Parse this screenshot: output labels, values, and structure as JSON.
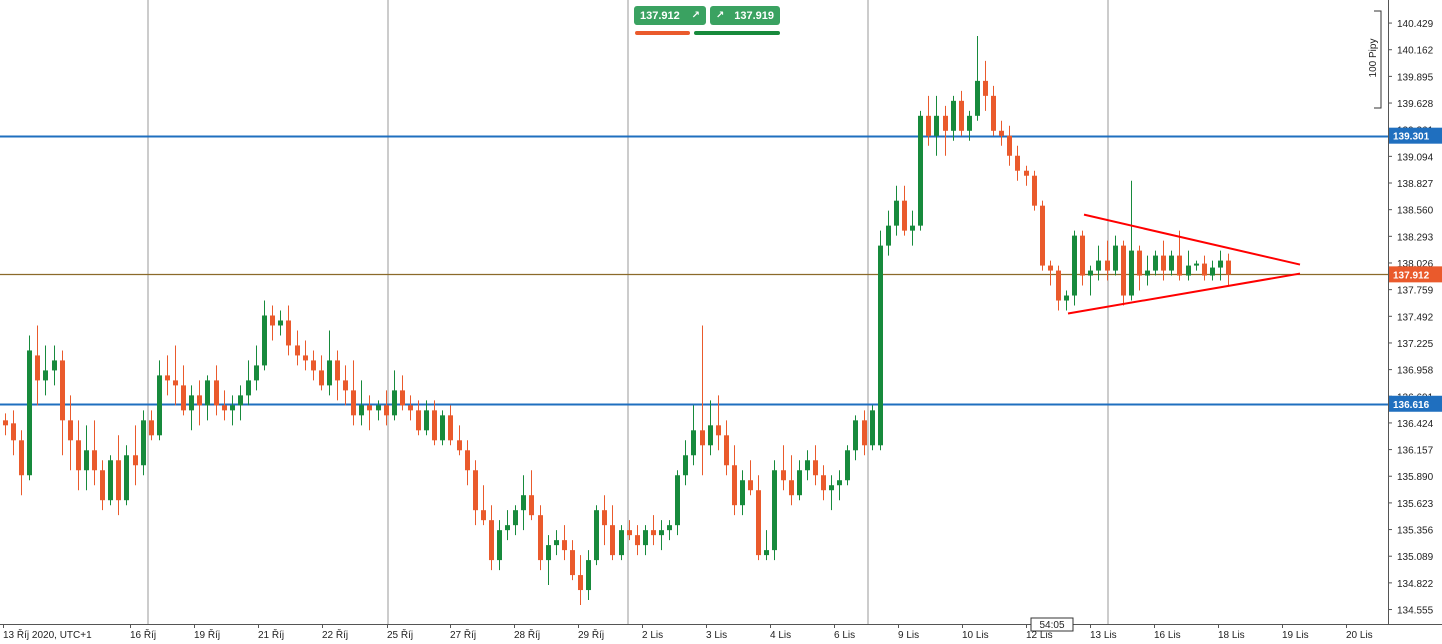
{
  "quotes": {
    "sell_price": "137.912",
    "buy_price": "137.919",
    "sell_icon": "arrow-up-right-icon",
    "buy_icon": "arrow-up-right-icon"
  },
  "countdown": "54:05",
  "scale_label": "100 Pipy",
  "colors": {
    "bull": "#178a3c",
    "bear": "#ea5a2c",
    "hline": "#1f6fbf",
    "price_line": "#8b6a2a",
    "triangle": "#ff0000",
    "grid": "#9a9a9a"
  },
  "chart_data": {
    "type": "candlestick",
    "instrument_price_axis": [
      "140.429",
      "140.162",
      "139.895",
      "139.628",
      "139.361",
      "139.094",
      "138.827",
      "138.560",
      "138.293",
      "138.026",
      "137.759",
      "137.492",
      "137.225",
      "136.958",
      "136.691",
      "136.424",
      "136.157",
      "135.890",
      "135.623",
      "135.356",
      "135.089",
      "134.822",
      "134.555"
    ],
    "ylim": [
      134.41,
      140.66
    ],
    "x_tick_labels": [
      "13 Říj 2020, UTC+1",
      "16 Říj",
      "19 Říj",
      "21 Říj",
      "22 Říj",
      "25 Říj",
      "27 Říj",
      "28 Říj",
      "29 Říj",
      "2 Lis",
      "3 Lis",
      "4 Lis",
      "6 Lis",
      "9 Lis",
      "10 Lis",
      "12 Lis",
      "13 Lis",
      "16 Lis",
      "18 Lis",
      "19 Lis",
      "20 Lis"
    ],
    "horizontal_levels": [
      {
        "label": "139.301",
        "value": 139.301,
        "kind": "resistance"
      },
      {
        "label": "136.616",
        "value": 136.616,
        "kind": "support"
      },
      {
        "label": "137.912",
        "value": 137.912,
        "kind": "current-price"
      }
    ],
    "triangle": {
      "upper": [
        [
          138.51,
          1084
        ],
        [
          138.01,
          1300
        ]
      ],
      "lower": [
        [
          137.52,
          1068
        ],
        [
          137.92,
          1300
        ]
      ]
    },
    "candles": [
      {
        "o": 136.45,
        "h": 136.52,
        "l": 136.3,
        "c": 136.4
      },
      {
        "o": 136.42,
        "h": 136.55,
        "l": 136.1,
        "c": 136.25
      },
      {
        "o": 136.25,
        "h": 136.35,
        "l": 135.7,
        "c": 135.9
      },
      {
        "o": 135.9,
        "h": 137.3,
        "l": 135.85,
        "c": 137.15
      },
      {
        "o": 137.1,
        "h": 137.4,
        "l": 136.6,
        "c": 136.85
      },
      {
        "o": 136.85,
        "h": 137.2,
        "l": 136.7,
        "c": 136.95
      },
      {
        "o": 136.95,
        "h": 137.2,
        "l": 136.8,
        "c": 137.05
      },
      {
        "o": 137.05,
        "h": 137.15,
        "l": 136.1,
        "c": 136.45
      },
      {
        "o": 136.45,
        "h": 136.7,
        "l": 135.95,
        "c": 136.25
      },
      {
        "o": 136.25,
        "h": 136.45,
        "l": 135.75,
        "c": 135.95
      },
      {
        "o": 135.95,
        "h": 136.4,
        "l": 135.75,
        "c": 136.15
      },
      {
        "o": 136.15,
        "h": 136.45,
        "l": 135.8,
        "c": 135.95
      },
      {
        "o": 135.95,
        "h": 136.05,
        "l": 135.55,
        "c": 135.65
      },
      {
        "o": 135.65,
        "h": 136.1,
        "l": 135.6,
        "c": 136.05
      },
      {
        "o": 136.05,
        "h": 136.3,
        "l": 135.5,
        "c": 135.65
      },
      {
        "o": 135.65,
        "h": 136.2,
        "l": 135.6,
        "c": 136.1
      },
      {
        "o": 136.1,
        "h": 136.4,
        "l": 135.8,
        "c": 136.0
      },
      {
        "o": 136.0,
        "h": 136.55,
        "l": 135.9,
        "c": 136.45
      },
      {
        "o": 136.45,
        "h": 136.55,
        "l": 136.25,
        "c": 136.3
      },
      {
        "o": 136.3,
        "h": 137.05,
        "l": 136.25,
        "c": 136.9
      },
      {
        "o": 136.9,
        "h": 137.1,
        "l": 136.7,
        "c": 136.85
      },
      {
        "o": 136.85,
        "h": 137.2,
        "l": 136.6,
        "c": 136.8
      },
      {
        "o": 136.8,
        "h": 137.0,
        "l": 136.5,
        "c": 136.55
      },
      {
        "o": 136.55,
        "h": 136.8,
        "l": 136.35,
        "c": 136.7
      },
      {
        "o": 136.7,
        "h": 136.85,
        "l": 136.4,
        "c": 136.6
      },
      {
        "o": 136.6,
        "h": 136.9,
        "l": 136.45,
        "c": 136.85
      },
      {
        "o": 136.85,
        "h": 137.0,
        "l": 136.5,
        "c": 136.6
      },
      {
        "o": 136.6,
        "h": 136.75,
        "l": 136.45,
        "c": 136.55
      },
      {
        "o": 136.55,
        "h": 136.7,
        "l": 136.4,
        "c": 136.6
      },
      {
        "o": 136.6,
        "h": 136.8,
        "l": 136.45,
        "c": 136.7
      },
      {
        "o": 136.7,
        "h": 137.05,
        "l": 136.6,
        "c": 136.85
      },
      {
        "o": 136.85,
        "h": 137.2,
        "l": 136.75,
        "c": 137.0
      },
      {
        "o": 137.0,
        "h": 137.65,
        "l": 136.95,
        "c": 137.5
      },
      {
        "o": 137.5,
        "h": 137.6,
        "l": 137.25,
        "c": 137.4
      },
      {
        "o": 137.4,
        "h": 137.55,
        "l": 137.3,
        "c": 137.45
      },
      {
        "o": 137.45,
        "h": 137.6,
        "l": 137.1,
        "c": 137.2
      },
      {
        "o": 137.2,
        "h": 137.35,
        "l": 137.0,
        "c": 137.1
      },
      {
        "o": 137.1,
        "h": 137.25,
        "l": 136.95,
        "c": 137.05
      },
      {
        "o": 137.05,
        "h": 137.15,
        "l": 136.85,
        "c": 136.95
      },
      {
        "o": 136.95,
        "h": 137.1,
        "l": 136.75,
        "c": 136.8
      },
      {
        "o": 136.8,
        "h": 137.35,
        "l": 136.7,
        "c": 137.05
      },
      {
        "o": 137.05,
        "h": 137.15,
        "l": 136.65,
        "c": 136.85
      },
      {
        "o": 136.85,
        "h": 137.0,
        "l": 136.6,
        "c": 136.75
      },
      {
        "o": 136.75,
        "h": 137.05,
        "l": 136.4,
        "c": 136.5
      },
      {
        "o": 136.5,
        "h": 136.85,
        "l": 136.4,
        "c": 136.6
      },
      {
        "o": 136.6,
        "h": 136.7,
        "l": 136.35,
        "c": 136.55
      },
      {
        "o": 136.55,
        "h": 136.65,
        "l": 136.45,
        "c": 136.6
      },
      {
        "o": 136.6,
        "h": 136.75,
        "l": 136.4,
        "c": 136.5
      },
      {
        "o": 136.5,
        "h": 136.95,
        "l": 136.45,
        "c": 136.75
      },
      {
        "o": 136.75,
        "h": 136.9,
        "l": 136.55,
        "c": 136.6
      },
      {
        "o": 136.6,
        "h": 136.7,
        "l": 136.45,
        "c": 136.55
      },
      {
        "o": 136.55,
        "h": 136.65,
        "l": 136.3,
        "c": 136.35
      },
      {
        "o": 136.35,
        "h": 136.65,
        "l": 136.3,
        "c": 136.55
      },
      {
        "o": 136.55,
        "h": 136.65,
        "l": 136.2,
        "c": 136.25
      },
      {
        "o": 136.25,
        "h": 136.55,
        "l": 136.2,
        "c": 136.5
      },
      {
        "o": 136.5,
        "h": 136.6,
        "l": 136.2,
        "c": 136.25
      },
      {
        "o": 136.25,
        "h": 136.4,
        "l": 136.1,
        "c": 136.15
      },
      {
        "o": 136.15,
        "h": 136.25,
        "l": 135.8,
        "c": 135.95
      },
      {
        "o": 135.95,
        "h": 136.05,
        "l": 135.4,
        "c": 135.55
      },
      {
        "o": 135.55,
        "h": 135.8,
        "l": 135.4,
        "c": 135.45
      },
      {
        "o": 135.45,
        "h": 135.6,
        "l": 134.95,
        "c": 135.05
      },
      {
        "o": 135.05,
        "h": 135.45,
        "l": 134.95,
        "c": 135.35
      },
      {
        "o": 135.35,
        "h": 135.55,
        "l": 135.25,
        "c": 135.4
      },
      {
        "o": 135.4,
        "h": 135.6,
        "l": 135.3,
        "c": 135.55
      },
      {
        "o": 135.55,
        "h": 135.9,
        "l": 135.35,
        "c": 135.7
      },
      {
        "o": 135.7,
        "h": 135.95,
        "l": 135.45,
        "c": 135.5
      },
      {
        "o": 135.5,
        "h": 135.6,
        "l": 134.95,
        "c": 135.05
      },
      {
        "o": 135.05,
        "h": 135.3,
        "l": 134.8,
        "c": 135.2
      },
      {
        "o": 135.2,
        "h": 135.35,
        "l": 135.1,
        "c": 135.25
      },
      {
        "o": 135.25,
        "h": 135.4,
        "l": 135.05,
        "c": 135.15
      },
      {
        "o": 135.15,
        "h": 135.25,
        "l": 134.85,
        "c": 134.9
      },
      {
        "o": 134.9,
        "h": 135.1,
        "l": 134.6,
        "c": 134.75
      },
      {
        "o": 134.75,
        "h": 135.15,
        "l": 134.65,
        "c": 135.05
      },
      {
        "o": 135.05,
        "h": 135.6,
        "l": 135.0,
        "c": 135.55
      },
      {
        "o": 135.55,
        "h": 135.7,
        "l": 135.2,
        "c": 135.4
      },
      {
        "o": 135.4,
        "h": 135.6,
        "l": 135.05,
        "c": 135.1
      },
      {
        "o": 135.1,
        "h": 135.4,
        "l": 135.05,
        "c": 135.35
      },
      {
        "o": 135.35,
        "h": 135.45,
        "l": 135.25,
        "c": 135.3
      },
      {
        "o": 135.3,
        "h": 135.4,
        "l": 135.1,
        "c": 135.2
      },
      {
        "o": 135.2,
        "h": 135.4,
        "l": 135.1,
        "c": 135.35
      },
      {
        "o": 135.35,
        "h": 135.5,
        "l": 135.2,
        "c": 135.3
      },
      {
        "o": 135.3,
        "h": 135.45,
        "l": 135.15,
        "c": 135.35
      },
      {
        "o": 135.35,
        "h": 135.45,
        "l": 135.25,
        "c": 135.4
      },
      {
        "o": 135.4,
        "h": 135.95,
        "l": 135.3,
        "c": 135.9
      },
      {
        "o": 135.9,
        "h": 136.25,
        "l": 135.8,
        "c": 136.1
      },
      {
        "o": 136.1,
        "h": 136.6,
        "l": 136.0,
        "c": 136.35
      },
      {
        "o": 136.35,
        "h": 137.4,
        "l": 135.9,
        "c": 136.2
      },
      {
        "o": 136.2,
        "h": 136.65,
        "l": 136.1,
        "c": 136.4
      },
      {
        "o": 136.4,
        "h": 136.7,
        "l": 136.15,
        "c": 136.3
      },
      {
        "o": 136.3,
        "h": 136.45,
        "l": 135.9,
        "c": 136.0
      },
      {
        "o": 136.0,
        "h": 136.2,
        "l": 135.5,
        "c": 135.6
      },
      {
        "o": 135.6,
        "h": 135.95,
        "l": 135.5,
        "c": 135.85
      },
      {
        "o": 135.85,
        "h": 136.05,
        "l": 135.7,
        "c": 135.75
      },
      {
        "o": 135.75,
        "h": 135.9,
        "l": 135.05,
        "c": 135.1
      },
      {
        "o": 135.1,
        "h": 135.35,
        "l": 135.05,
        "c": 135.15
      },
      {
        "o": 135.15,
        "h": 136.05,
        "l": 135.05,
        "c": 135.95
      },
      {
        "o": 135.95,
        "h": 136.2,
        "l": 135.75,
        "c": 135.85
      },
      {
        "o": 135.85,
        "h": 136.1,
        "l": 135.6,
        "c": 135.7
      },
      {
        "o": 135.7,
        "h": 136.05,
        "l": 135.65,
        "c": 135.95
      },
      {
        "o": 135.95,
        "h": 136.15,
        "l": 135.85,
        "c": 136.05
      },
      {
        "o": 136.05,
        "h": 136.2,
        "l": 135.8,
        "c": 135.9
      },
      {
        "o": 135.9,
        "h": 136.0,
        "l": 135.65,
        "c": 135.75
      },
      {
        "o": 135.75,
        "h": 135.9,
        "l": 135.55,
        "c": 135.8
      },
      {
        "o": 135.8,
        "h": 135.95,
        "l": 135.65,
        "c": 135.85
      },
      {
        "o": 135.85,
        "h": 136.2,
        "l": 135.8,
        "c": 136.15
      },
      {
        "o": 136.15,
        "h": 136.5,
        "l": 136.05,
        "c": 136.45
      },
      {
        "o": 136.45,
        "h": 136.55,
        "l": 136.1,
        "c": 136.2
      },
      {
        "o": 136.2,
        "h": 136.6,
        "l": 136.15,
        "c": 136.55
      },
      {
        "o": 136.2,
        "h": 138.35,
        "l": 136.15,
        "c": 138.2
      },
      {
        "o": 138.2,
        "h": 138.55,
        "l": 138.1,
        "c": 138.4
      },
      {
        "o": 138.4,
        "h": 138.8,
        "l": 138.3,
        "c": 138.65
      },
      {
        "o": 138.65,
        "h": 138.8,
        "l": 138.3,
        "c": 138.35
      },
      {
        "o": 138.35,
        "h": 138.55,
        "l": 138.2,
        "c": 138.4
      },
      {
        "o": 138.4,
        "h": 139.55,
        "l": 138.35,
        "c": 139.5
      },
      {
        "o": 139.5,
        "h": 139.7,
        "l": 139.2,
        "c": 139.3
      },
      {
        "o": 139.3,
        "h": 139.7,
        "l": 139.1,
        "c": 139.5
      },
      {
        "o": 139.5,
        "h": 139.6,
        "l": 139.1,
        "c": 139.35
      },
      {
        "o": 139.35,
        "h": 139.7,
        "l": 139.25,
        "c": 139.65
      },
      {
        "o": 139.65,
        "h": 139.75,
        "l": 139.3,
        "c": 139.35
      },
      {
        "o": 139.35,
        "h": 139.55,
        "l": 139.25,
        "c": 139.5
      },
      {
        "o": 139.5,
        "h": 140.3,
        "l": 139.45,
        "c": 139.85
      },
      {
        "o": 139.85,
        "h": 140.05,
        "l": 139.55,
        "c": 139.7
      },
      {
        "o": 139.7,
        "h": 139.8,
        "l": 139.3,
        "c": 139.35
      },
      {
        "o": 139.35,
        "h": 139.45,
        "l": 139.2,
        "c": 139.3
      },
      {
        "o": 139.3,
        "h": 139.4,
        "l": 139.0,
        "c": 139.1
      },
      {
        "o": 139.1,
        "h": 139.2,
        "l": 138.85,
        "c": 138.95
      },
      {
        "o": 138.95,
        "h": 139.0,
        "l": 138.8,
        "c": 138.9
      },
      {
        "o": 138.9,
        "h": 138.95,
        "l": 138.55,
        "c": 138.6
      },
      {
        "o": 138.6,
        "h": 138.65,
        "l": 137.95,
        "c": 138.0
      },
      {
        "o": 138.0,
        "h": 138.05,
        "l": 137.8,
        "c": 137.95
      },
      {
        "o": 137.95,
        "h": 138.0,
        "l": 137.55,
        "c": 137.65
      },
      {
        "o": 137.65,
        "h": 137.75,
        "l": 137.55,
        "c": 137.7
      },
      {
        "o": 137.7,
        "h": 138.35,
        "l": 137.6,
        "c": 138.3
      },
      {
        "o": 138.3,
        "h": 138.35,
        "l": 137.8,
        "c": 137.9
      },
      {
        "o": 137.9,
        "h": 138.0,
        "l": 137.7,
        "c": 137.95
      },
      {
        "o": 137.95,
        "h": 138.2,
        "l": 137.85,
        "c": 138.05
      },
      {
        "o": 138.05,
        "h": 138.25,
        "l": 137.85,
        "c": 137.95
      },
      {
        "o": 137.95,
        "h": 138.3,
        "l": 137.9,
        "c": 138.2
      },
      {
        "o": 138.2,
        "h": 138.25,
        "l": 137.6,
        "c": 137.7
      },
      {
        "o": 137.7,
        "h": 138.85,
        "l": 137.65,
        "c": 138.15
      },
      {
        "o": 138.15,
        "h": 138.2,
        "l": 137.75,
        "c": 137.9
      },
      {
        "o": 137.9,
        "h": 138.1,
        "l": 137.8,
        "c": 137.95
      },
      {
        "o": 137.95,
        "h": 138.15,
        "l": 137.9,
        "c": 138.1
      },
      {
        "o": 138.1,
        "h": 138.25,
        "l": 137.85,
        "c": 137.95
      },
      {
        "o": 137.95,
        "h": 138.15,
        "l": 137.9,
        "c": 138.1
      },
      {
        "o": 138.1,
        "h": 138.35,
        "l": 137.85,
        "c": 137.9
      },
      {
        "o": 137.9,
        "h": 138.15,
        "l": 137.85,
        "c": 138.0
      },
      {
        "o": 138.0,
        "h": 138.05,
        "l": 137.95,
        "c": 138.02
      },
      {
        "o": 138.02,
        "h": 138.1,
        "l": 137.85,
        "c": 137.9
      },
      {
        "o": 137.9,
        "h": 138.05,
        "l": 137.85,
        "c": 137.98
      },
      {
        "o": 137.98,
        "h": 138.15,
        "l": 137.85,
        "c": 138.05
      },
      {
        "o": 138.05,
        "h": 138.12,
        "l": 137.8,
        "c": 137.91
      }
    ]
  }
}
